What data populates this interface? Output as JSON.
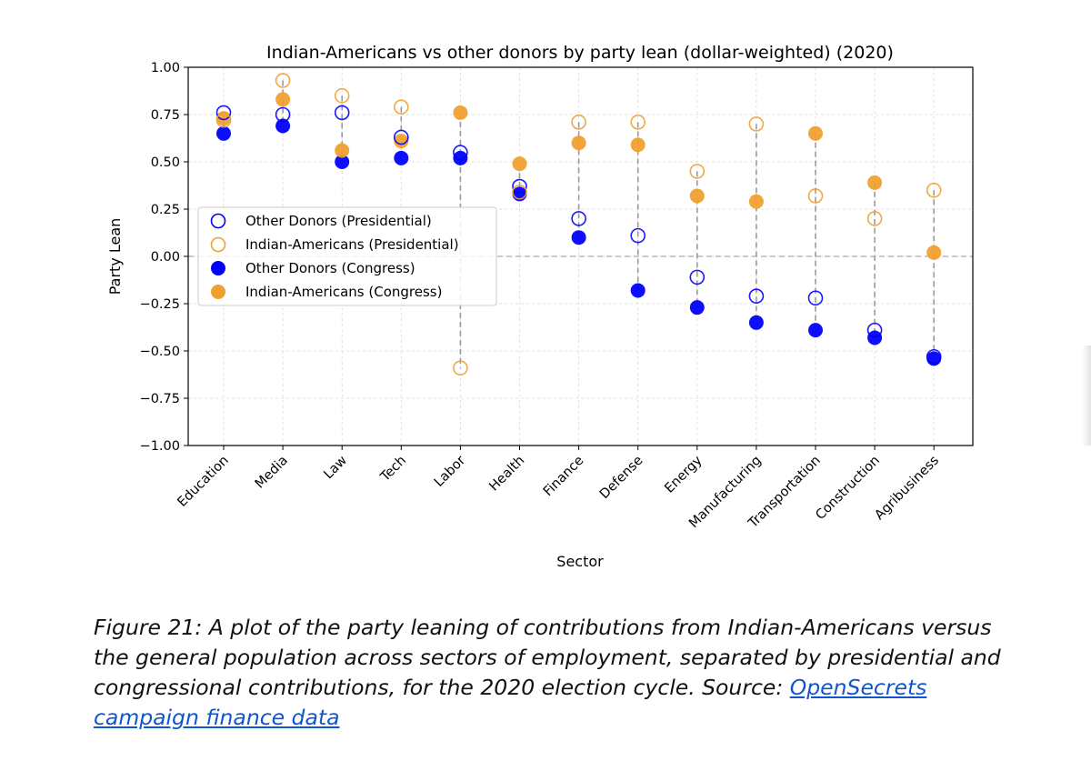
{
  "chart_data": {
    "type": "scatter",
    "title": "Indian-Americans vs other donors by party lean (dollar-weighted) (2020)",
    "xlabel": "Sector",
    "ylabel": "Party Lean",
    "ylim": [
      -1.0,
      1.0
    ],
    "yticks": [
      1.0,
      0.75,
      0.5,
      0.25,
      0.0,
      -0.25,
      -0.5,
      -0.75,
      -1.0
    ],
    "ytick_labels": [
      "1.00",
      "0.75",
      "0.50",
      "0.25",
      "0.00",
      "−0.25",
      "−0.50",
      "−0.75",
      "−1.00"
    ],
    "grid": true,
    "legend_position": "center-left",
    "categories": [
      "Education",
      "Media",
      "Law",
      "Tech",
      "Labor",
      "Health",
      "Finance",
      "Defense",
      "Energy",
      "Manufacturing",
      "Transportation",
      "Construction",
      "Agribusiness"
    ],
    "series": [
      {
        "name": "Other Donors (Presidential)",
        "color": "#0000ff",
        "marker": "open-circle",
        "values": [
          0.76,
          0.75,
          0.76,
          0.63,
          0.55,
          0.37,
          0.2,
          0.11,
          -0.11,
          -0.21,
          -0.22,
          -0.39,
          -0.53
        ]
      },
      {
        "name": "Indian-Americans (Presidential)",
        "color": "#f0a030",
        "marker": "open-circle",
        "values": [
          0.72,
          0.93,
          0.85,
          0.79,
          -0.59,
          0.34,
          0.71,
          0.71,
          0.45,
          0.7,
          0.32,
          0.2,
          0.35
        ]
      },
      {
        "name": "Other Donors (Congress)",
        "color": "#0000ff",
        "marker": "filled-circle",
        "values": [
          0.65,
          0.69,
          0.5,
          0.52,
          0.52,
          0.33,
          0.1,
          -0.18,
          -0.27,
          -0.35,
          -0.39,
          -0.43,
          -0.54
        ]
      },
      {
        "name": "Indian-Americans (Congress)",
        "color": "#f0a030",
        "marker": "filled-circle",
        "values": [
          0.73,
          0.83,
          0.56,
          0.61,
          0.76,
          0.49,
          0.6,
          0.59,
          0.32,
          0.29,
          0.65,
          0.39,
          0.02
        ]
      }
    ]
  },
  "caption": {
    "text": "Figure 21: A plot of the party leaning of contributions from Indian-Americans versus the general population across sectors of employment, separated by presidential and congressional contributions, for the 2020 election cycle. Source: ",
    "link_text": "OpenSecrets campaign finance data"
  }
}
